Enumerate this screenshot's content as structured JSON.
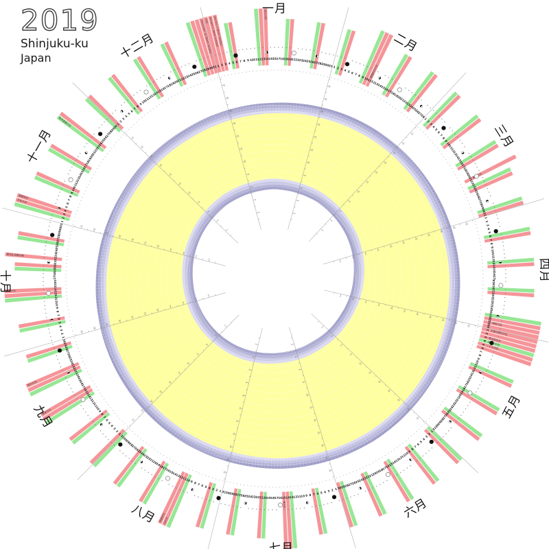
{
  "title": {
    "year": "2019",
    "location": "Shinjuku-ku",
    "country": "Japan"
  },
  "colors": {
    "background": "#ffffff",
    "saturday_bar": "#97e795",
    "holiday_bar": "#f59599",
    "daylight": "#feff9d",
    "twilight_steps": [
      "#a09fc9",
      "#b2b1d6",
      "#c5c4e4",
      "#d9d8f0"
    ],
    "month_line": "#9a9a9a",
    "day_number": "#222222",
    "dot_ring": "#999999",
    "moon_glyph": "#8a8a8a",
    "moon_new": "#111111",
    "moon_full_fill": "#ffffff",
    "moon_full_stroke": "#888888",
    "holiday_label_text": "#3a3a3a",
    "month_label_text": "#111111",
    "tick_text": "#666666"
  },
  "chart_data": {
    "type": "circular_calendar",
    "year": 2019,
    "location": "Shinjuku-ku, Japan",
    "months": [
      {
        "name": "一月",
        "days": 31
      },
      {
        "name": "二月",
        "days": 28
      },
      {
        "name": "三月",
        "days": 31
      },
      {
        "name": "四月",
        "days": 30
      },
      {
        "name": "五月",
        "days": 31
      },
      {
        "name": "六月",
        "days": 30
      },
      {
        "name": "七月",
        "days": 31
      },
      {
        "name": "八月",
        "days": 31
      },
      {
        "name": "九月",
        "days": 30
      },
      {
        "name": "十月",
        "days": 31
      },
      {
        "name": "十一月",
        "days": 30
      },
      {
        "name": "十二月",
        "days": 31
      }
    ],
    "jan1_weekday_index": 2,
    "weekend_rule": {
      "saturday": "green bar",
      "sunday_or_public_holiday": "pink bar"
    },
    "holidays": [
      {
        "month": 1,
        "day": 1,
        "label": "元日"
      },
      {
        "month": 1,
        "day": 2,
        "label": "January 2 (Bank holiday)"
      },
      {
        "month": 1,
        "day": 3,
        "label": "January 3 (Bank holiday)"
      },
      {
        "month": 1,
        "day": 14,
        "label": "成人の日"
      },
      {
        "month": 2,
        "day": 11,
        "label": "建国記念の日"
      },
      {
        "month": 3,
        "day": 21,
        "label": "春分の日"
      },
      {
        "month": 4,
        "day": 29,
        "label": "昭和の日"
      },
      {
        "month": 4,
        "day": 30,
        "label": null
      },
      {
        "month": 5,
        "day": 1,
        "label": "天皇の即位の日"
      },
      {
        "month": 5,
        "day": 2,
        "label": null
      },
      {
        "month": 5,
        "day": 3,
        "label": "憲法記念日"
      },
      {
        "month": 5,
        "day": 4,
        "label": "みどりの日"
      },
      {
        "month": 5,
        "day": 5,
        "label": "こどもの日"
      },
      {
        "month": 5,
        "day": 6,
        "label": null
      },
      {
        "month": 7,
        "day": 15,
        "label": "海の日"
      },
      {
        "month": 8,
        "day": 11,
        "label": "山の日"
      },
      {
        "month": 8,
        "day": 12,
        "label": "振替休日"
      },
      {
        "month": 9,
        "day": 16,
        "label": "敬老の日"
      },
      {
        "month": 9,
        "day": 23,
        "label": "秋分の日"
      },
      {
        "month": 10,
        "day": 14,
        "label": "体育の日"
      },
      {
        "month": 10,
        "day": 22,
        "label": "即位礼正殿の儀"
      },
      {
        "month": 11,
        "day": 3,
        "label": "文化の日"
      },
      {
        "month": 11,
        "day": 4,
        "label": "振替休日"
      },
      {
        "month": 11,
        "day": 23,
        "label": "勤労感謝の日"
      },
      {
        "month": 12,
        "day": 30,
        "label": null
      },
      {
        "month": 12,
        "day": 31,
        "label": "December 31 (Bank holiday)"
      }
    ],
    "moon_phases": {
      "new_moon": [
        [
          1,
          6
        ],
        [
          2,
          4
        ],
        [
          3,
          6
        ],
        [
          4,
          5
        ],
        [
          5,
          4
        ],
        [
          6,
          3
        ],
        [
          7,
          2
        ],
        [
          8,
          1
        ],
        [
          8,
          30
        ],
        [
          9,
          28
        ],
        [
          10,
          28
        ],
        [
          11,
          26
        ],
        [
          12,
          26
        ]
      ],
      "full_moon": [
        [
          1,
          21
        ],
        [
          2,
          19
        ],
        [
          3,
          21
        ],
        [
          4,
          19
        ],
        [
          5,
          18
        ],
        [
          6,
          17
        ],
        [
          7,
          16
        ],
        [
          8,
          15
        ],
        [
          9,
          14
        ],
        [
          10,
          13
        ],
        [
          11,
          12
        ],
        [
          12,
          12
        ]
      ],
      "first_quarter": [
        [
          1,
          14
        ],
        [
          2,
          13
        ],
        [
          3,
          14
        ],
        [
          4,
          13
        ],
        [
          5,
          12
        ],
        [
          6,
          10
        ],
        [
          7,
          9
        ],
        [
          8,
          8
        ],
        [
          9,
          6
        ],
        [
          10,
          6
        ],
        [
          11,
          4
        ],
        [
          12,
          4
        ]
      ],
      "last_quarter": [
        [
          1,
          27
        ],
        [
          2,
          26
        ],
        [
          3,
          28
        ],
        [
          4,
          27
        ],
        [
          5,
          27
        ],
        [
          6,
          25
        ],
        [
          7,
          25
        ],
        [
          8,
          23
        ],
        [
          9,
          22
        ],
        [
          10,
          21
        ],
        [
          11,
          20
        ],
        [
          12,
          19
        ]
      ]
    },
    "daylight": {
      "sunrise_hour_by_month": [
        6.84,
        6.57,
        6.0,
        5.3,
        4.7,
        4.43,
        4.53,
        4.93,
        5.3,
        5.65,
        6.1,
        6.6
      ],
      "sunset_hour_by_month": [
        16.75,
        17.3,
        17.75,
        18.2,
        18.6,
        18.95,
        18.95,
        18.55,
        17.9,
        17.2,
        16.65,
        16.5
      ],
      "twilight_offsets_hours": [
        0.4,
        0.8,
        1.2,
        1.6
      ]
    },
    "hour_tick_labels": [
      2,
      4,
      6,
      8,
      10,
      12,
      14,
      16,
      18,
      20,
      22
    ]
  }
}
